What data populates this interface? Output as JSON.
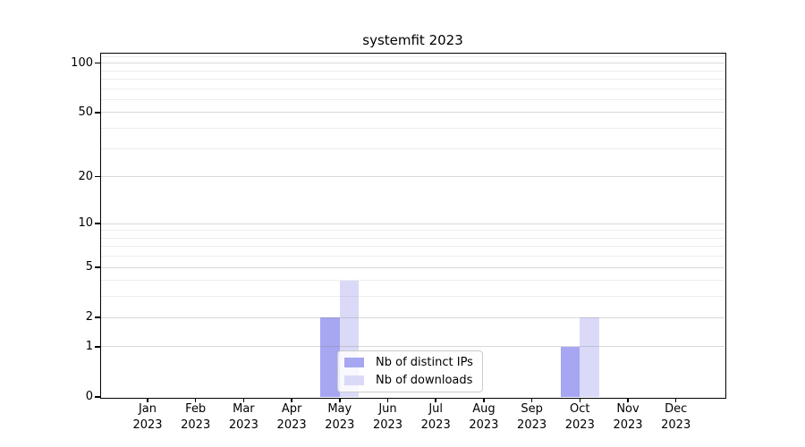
{
  "chart_data": {
    "type": "bar",
    "title": "systemfit 2023",
    "x_ticks": [
      {
        "month": "Jan",
        "year": "2023"
      },
      {
        "month": "Feb",
        "year": "2023"
      },
      {
        "month": "Mar",
        "year": "2023"
      },
      {
        "month": "Apr",
        "year": "2023"
      },
      {
        "month": "May",
        "year": "2023"
      },
      {
        "month": "Jun",
        "year": "2023"
      },
      {
        "month": "Jul",
        "year": "2023"
      },
      {
        "month": "Aug",
        "year": "2023"
      },
      {
        "month": "Sep",
        "year": "2023"
      },
      {
        "month": "Oct",
        "year": "2023"
      },
      {
        "month": "Nov",
        "year": "2023"
      },
      {
        "month": "Dec",
        "year": "2023"
      }
    ],
    "categories": [
      "Jan 2023",
      "Feb 2023",
      "Mar 2023",
      "Apr 2023",
      "May 2023",
      "Jun 2023",
      "Jul 2023",
      "Aug 2023",
      "Sep 2023",
      "Oct 2023",
      "Nov 2023",
      "Dec 2023"
    ],
    "series": [
      {
        "name": "Nb of distinct IPs",
        "color": "#a6a6f2",
        "values": [
          0,
          0,
          0,
          0,
          2,
          0,
          0,
          0,
          0,
          1,
          0,
          0
        ]
      },
      {
        "name": "Nb of downloads",
        "color": "#dadaf8",
        "values": [
          0,
          0,
          0,
          0,
          4,
          0,
          0,
          0,
          0,
          2,
          0,
          0
        ]
      }
    ],
    "y_scale": "log1p",
    "y_ticks": [
      0,
      1,
      2,
      5,
      10,
      20,
      50,
      100
    ],
    "y_minor_ticks": [
      3,
      4,
      6,
      7,
      8,
      9,
      30,
      40,
      60,
      70,
      80,
      90,
      110
    ],
    "y_top": 114.2,
    "ylim": [
      0,
      114.2
    ],
    "xlabel": "",
    "ylabel": "",
    "grid": "horizontal",
    "legend_position": "lower center",
    "colors": {
      "major_grid": "rgba(128,128,128,0.30)",
      "minor_grid": "rgba(128,128,128,0.14)",
      "spine": "#000000",
      "background": "#ffffff"
    }
  }
}
